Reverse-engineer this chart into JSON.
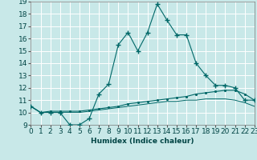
{
  "xlabel": "Humidex (Indice chaleur)",
  "ylabel": "",
  "background_color": "#c8e8e8",
  "grid_color": "#b0d8d8",
  "line_color": "#006868",
  "x_data": [
    0,
    1,
    2,
    3,
    4,
    5,
    6,
    7,
    8,
    9,
    10,
    11,
    12,
    13,
    14,
    15,
    16,
    17,
    18,
    19,
    20,
    21,
    22,
    23
  ],
  "y_line1": [
    10.5,
    10.0,
    10.0,
    10.0,
    9.0,
    9.0,
    9.5,
    11.5,
    12.3,
    15.5,
    16.5,
    15.0,
    16.5,
    18.8,
    17.5,
    16.3,
    16.3,
    14.0,
    13.0,
    12.2,
    12.2,
    12.0,
    11.0,
    11.0
  ],
  "y_line2": [
    10.5,
    10.0,
    10.1,
    10.1,
    10.1,
    10.1,
    10.2,
    10.3,
    10.4,
    10.5,
    10.7,
    10.8,
    10.9,
    11.0,
    11.1,
    11.2,
    11.3,
    11.5,
    11.6,
    11.7,
    11.8,
    11.8,
    11.5,
    11.0
  ],
  "y_line3": [
    10.5,
    10.0,
    10.0,
    10.0,
    10.0,
    10.0,
    10.1,
    10.2,
    10.3,
    10.4,
    10.5,
    10.6,
    10.7,
    10.8,
    10.9,
    10.9,
    11.0,
    11.0,
    11.1,
    11.1,
    11.1,
    11.0,
    10.8,
    10.5
  ],
  "xlim": [
    0,
    23
  ],
  "ylim": [
    9,
    19
  ],
  "yticks": [
    9,
    10,
    11,
    12,
    13,
    14,
    15,
    16,
    17,
    18,
    19
  ],
  "xticks": [
    0,
    1,
    2,
    3,
    4,
    5,
    6,
    7,
    8,
    9,
    10,
    11,
    12,
    13,
    14,
    15,
    16,
    17,
    18,
    19,
    20,
    21,
    22,
    23
  ],
  "font_size": 6.5
}
